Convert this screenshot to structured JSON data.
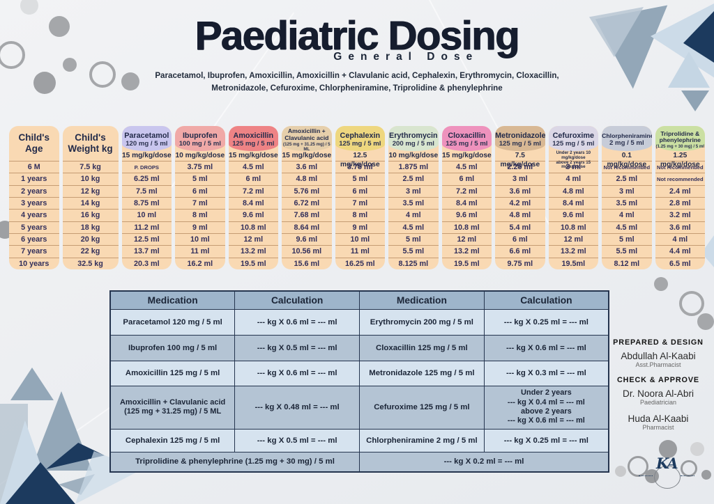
{
  "title": "Paediatric Dosing",
  "subtitle": "General Dose",
  "description": "Paracetamol, Ibuprofen, Amoxicillin, Amoxicillin + Clavulanic acid, Cephalexin, Erythromycin, Cloxacillin,\nMetronidazole, Cefuroxime, Chlorpheniramine, Triprolidine & phenylephrine",
  "colors": {
    "background": "#edeff1",
    "accent_navy": "#1c3a5e",
    "peach": "#f9d9b3",
    "chart_text": "#322f5b",
    "title_text": "#161d2e",
    "calc_header_bg": "#9eb5cb",
    "calc_row_light": "#d6e3ef",
    "calc_row_dark": "#b4c4d4",
    "calc_border": "#24344e"
  },
  "dosing_chart": {
    "age_column": {
      "header": "Child's Age",
      "values": [
        "6 M",
        "1 years",
        "2 years",
        "3 years",
        "4 years",
        "5 years",
        "6 years",
        "7 years",
        "10 years"
      ]
    },
    "weight_column": {
      "header": "Child's Weight kg",
      "values": [
        "7.5 kg",
        "10 kg",
        "12 kg",
        "14 kg",
        "16 kg",
        "18 kg",
        "20 kg",
        "22 kg",
        "32.5 kg"
      ]
    },
    "drug_columns": [
      {
        "name": "Paracetamol",
        "concentration": "120 mg / 5 ml",
        "dose": "15 mg/kg/dose",
        "color": "#c9c6ee",
        "values": [
          "P. DROPS",
          "6.25 ml",
          "7.5 ml",
          "8.75 ml",
          "10 ml",
          "11.2 ml",
          "12.5 ml",
          "13.7 ml",
          "20.3 ml"
        ]
      },
      {
        "name": "Ibuprofen",
        "concentration": "100 mg / 5 ml",
        "dose": "10 mg/kg/dose",
        "color": "#f0a9a7",
        "values": [
          "3.75 ml",
          "5 ml",
          "6 ml",
          "7 ml",
          "8 ml",
          "9 ml",
          "10 ml",
          "11 ml",
          "16.2 ml"
        ]
      },
      {
        "name": "Amoxicillin",
        "concentration": "125 mg / 5 ml",
        "dose": "15 mg/kg/dose",
        "color": "#ee8385",
        "values": [
          "4.5 ml",
          "6 ml",
          "7.2 ml",
          "8.4 ml",
          "9.6 ml",
          "10.8 ml",
          "12 ml",
          "13.2 ml",
          "19.5 ml"
        ]
      },
      {
        "name": "Amoxicillin + Clavulanic acid",
        "concentration": "(125 mg + 31.25 mg) / 5 ML",
        "dose": "15 mg/kg/dose",
        "color": "#e6cfab",
        "values": [
          "3.6 ml",
          "4.8 ml",
          "5.76 ml",
          "6.72 ml",
          "7.68 ml",
          "8.64 ml",
          "9.6 ml",
          "10.56 ml",
          "15.6 ml"
        ]
      },
      {
        "name": "Cephalexin",
        "concentration": "125 mg / 5 ml",
        "dose": "12.5 mg/kg/dose",
        "color": "#eed77f",
        "values": [
          "3.75 ml",
          "5 ml",
          "6 ml",
          "7 ml",
          "8 ml",
          "9 ml",
          "10 ml",
          "11 ml",
          "16.25 ml"
        ]
      },
      {
        "name": "Erythromycin",
        "concentration": "200 mg / 5 ml",
        "dose": "10 mg/kg/dose",
        "color": "#d8e5cf",
        "values": [
          "1.875 ml",
          "2.5 ml",
          "3 ml",
          "3.5 ml",
          "4 ml",
          "4.5 ml",
          "5 ml",
          "5.5 ml",
          "8.125 ml"
        ]
      },
      {
        "name": "Cloxacillin",
        "concentration": "125 mg / 5 ml",
        "dose": "15 mg/kg/dose",
        "color": "#ee92bd",
        "values": [
          "4.5 ml",
          "6 ml",
          "7.2 ml",
          "8.4 ml",
          "9.6 ml",
          "10.8 ml",
          "12 ml",
          "13.2 ml",
          "19.5 ml"
        ]
      },
      {
        "name": "Metronidazole",
        "concentration": "125 mg / 5 ml",
        "dose": "7.5 mg/kg/dose",
        "color": "#d8b894",
        "values": [
          "2.25 ml",
          "3 ml",
          "3.6 ml",
          "4.2 ml",
          "4.8 ml",
          "5.4 ml",
          "6 ml",
          "6.6 ml",
          "9.75 ml"
        ]
      },
      {
        "name": "Cefuroxime",
        "concentration": "125 mg / 5 ml",
        "dose": "Under 2 years  10 mg/kg/dose\nabove 2 years  15 mg/kg/dose",
        "color": "#dbd7e6",
        "values": [
          "3 ml",
          "4 ml",
          "4.8 ml",
          "8.4 ml",
          "9.6 ml",
          "10.8 ml",
          "12 ml",
          "13.2 ml",
          "19.5ml"
        ]
      },
      {
        "name": "Chlorpheniramine",
        "concentration": "2 mg / 5 ml",
        "dose": "0.1 mg/kg/dose",
        "color": "#c7ccd8",
        "values": [
          "Not recommended",
          "2.5  ml",
          "3 ml",
          "3.5 ml",
          "4 ml",
          "4.5 ml",
          "5 ml",
          "5.5 ml",
          "8.12 ml"
        ]
      },
      {
        "name": "Triprolidine & phenylephrine",
        "concentration": "(1.25 mg + 30 mg) / 5 ml",
        "dose": "1.25 mg/kg/dose",
        "color": "#cbe0a3",
        "values": [
          "Not recommended",
          "Not recommended",
          "2.4 ml",
          "2.8 ml",
          "3.2 ml",
          "3.6 ml",
          "4 ml",
          "4.4 ml",
          "6.5 ml"
        ]
      }
    ]
  },
  "calc_table": {
    "headers": [
      "Medication",
      "Calculation",
      "Medication",
      "Calculation"
    ],
    "rows": [
      {
        "cells": [
          "Paracetamol 120 mg / 5 ml",
          "--- kg X 0.6 ml = --- ml",
          "Erythromycin 200 mg / 5 ml",
          "--- kg X 0.25 ml = --- ml"
        ]
      },
      {
        "cells": [
          "Ibuprofen 100 mg / 5 ml",
          "--- kg X 0.5 ml = --- ml",
          "Cloxacillin 125 mg / 5 ml",
          "--- kg X 0.6 ml = --- ml"
        ]
      },
      {
        "cells": [
          "Amoxicillin 125 mg / 5 ml",
          "--- kg X 0.6 ml = --- ml",
          "Metronidazole 125 mg / 5 ml",
          "--- kg X 0.3 ml = --- ml"
        ]
      },
      {
        "cells": [
          "Amoxicillin + Clavulanic acid\n(125 mg + 31.25 mg) / 5 ML",
          "--- kg X 0.48 ml = --- ml",
          "Cefuroxime 125 mg / 5 ml",
          "Under 2 years\n--- kg X 0.4 ml = --- ml\nabove 2 years\n--- kg X 0.6 ml = --- ml"
        ]
      },
      {
        "cells": [
          "Cephalexin 125 mg / 5 ml",
          "--- kg X 0.5 ml = --- ml",
          "Chlorpheniramine 2 mg / 5 ml",
          "--- kg X 0.25 ml = --- ml"
        ]
      }
    ],
    "footer_row": {
      "medication": "Triprolidine & phenylephrine  (1.25 mg + 30 mg) / 5 ml",
      "calculation": "--- kg X 0.2 ml = --- ml"
    }
  },
  "credits": {
    "prepared_heading": "PREPARED & DESIGN",
    "prepared_name": "Abdullah Al-Kaabi",
    "prepared_role": "Asst.Pharmacist",
    "approve_heading": "CHECK & APPROVE",
    "approver1_name": "Dr. Noora Al-Abri",
    "approver1_role": "Paediatrician",
    "approver2_name": "Huda Al-Kaabi",
    "approver2_role": "Pharmacist"
  },
  "logo_initials": "KA"
}
